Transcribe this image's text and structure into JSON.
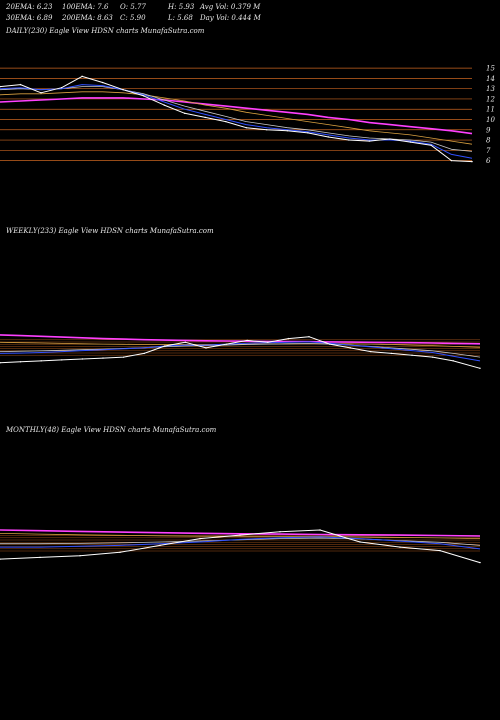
{
  "header": {
    "ema20": "20EMA: 6.23",
    "ema100": "100EMA: 7.6",
    "open": "O: 5.77",
    "high": "H: 5.93",
    "avgvol": "Avg Vol: 0.379 M",
    "ema30": "30EMA: 6.89",
    "ema200": "200EMA: 8.63",
    "close": "C: 5.90",
    "low": "L: 5.68",
    "dayvol": "Day Vol: 0.444 M"
  },
  "colors": {
    "background": "#000000",
    "price": "#ffffff",
    "ema_fast": "#3050ff",
    "ema_mid": "#c8c8c8",
    "ema_slow": "#d8a040",
    "ema_200": "#ff40ff",
    "guide_lines": "#c86420"
  },
  "chart_data": [
    {
      "type": "line",
      "title": "DAILY(230) Eagle  View  HDSN  charts MunafaSutra.com",
      "ylim": [
        4.5,
        15.5
      ],
      "y_ticks": [
        15,
        14,
        13,
        12,
        11,
        10,
        9,
        8,
        7,
        6
      ],
      "y_tick_labels": [
        "15",
        "14",
        "13",
        "12",
        "11",
        "10",
        "9",
        "8",
        "7",
        "6"
      ],
      "x": [
        0,
        10,
        20,
        30,
        40,
        50,
        60,
        70,
        80,
        90,
        100,
        110,
        120,
        130,
        140,
        150,
        160,
        170,
        180,
        190,
        200,
        210,
        220,
        230
      ],
      "series": [
        {
          "key": "price",
          "values": [
            13.2,
            13.4,
            12.6,
            13.1,
            14.2,
            13.6,
            12.9,
            12.3,
            11.4,
            10.6,
            10.2,
            9.8,
            9.2,
            9.0,
            8.9,
            8.7,
            8.3,
            8.0,
            7.9,
            8.1,
            7.8,
            7.5,
            6.0,
            5.9
          ]
        },
        {
          "key": "ema20",
          "values": [
            13.0,
            13.1,
            12.9,
            13.0,
            13.4,
            13.3,
            12.9,
            12.4,
            11.7,
            11.0,
            10.5,
            10.0,
            9.5,
            9.2,
            9.0,
            8.8,
            8.5,
            8.2,
            8.0,
            8.0,
            7.9,
            7.6,
            6.6,
            6.23
          ]
        },
        {
          "key": "ema30",
          "values": [
            12.9,
            13.0,
            12.9,
            13.0,
            13.2,
            13.2,
            12.9,
            12.5,
            11.9,
            11.3,
            10.8,
            10.3,
            9.8,
            9.5,
            9.2,
            9.0,
            8.7,
            8.4,
            8.2,
            8.1,
            8.0,
            7.8,
            7.1,
            6.89
          ]
        },
        {
          "key": "ema100",
          "values": [
            12.4,
            12.5,
            12.5,
            12.6,
            12.7,
            12.7,
            12.6,
            12.4,
            12.1,
            11.8,
            11.4,
            11.1,
            10.7,
            10.4,
            10.1,
            9.8,
            9.5,
            9.2,
            8.9,
            8.7,
            8.5,
            8.2,
            7.9,
            7.6
          ]
        },
        {
          "key": "ema200",
          "values": [
            11.7,
            11.8,
            11.9,
            12.0,
            12.1,
            12.1,
            12.1,
            12.0,
            11.9,
            11.7,
            11.5,
            11.3,
            11.1,
            10.9,
            10.7,
            10.5,
            10.2,
            10.0,
            9.7,
            9.5,
            9.3,
            9.1,
            8.9,
            8.63
          ]
        }
      ]
    },
    {
      "type": "line",
      "title": "WEEKLY(233) Eagle  View  HDSN  charts MunafaSutra.com",
      "ylim": [
        4,
        32
      ],
      "y_ticks": [],
      "x": [
        0,
        10,
        20,
        30,
        40,
        50,
        60,
        70,
        80,
        90,
        100,
        110,
        120,
        130,
        140,
        150,
        160,
        170,
        180,
        190,
        200,
        210,
        220,
        233
      ],
      "series": [
        {
          "key": "price",
          "values": [
            9,
            9.5,
            10,
            10.5,
            11,
            11.5,
            12,
            14,
            18,
            20,
            17,
            19,
            21,
            20,
            22,
            23,
            19,
            17,
            15,
            14,
            13,
            12,
            10,
            6
          ]
        },
        {
          "key": "ema20",
          "values": [
            14,
            14.2,
            14.5,
            15,
            15.5,
            16,
            16.5,
            17,
            18,
            18.5,
            18.5,
            19,
            19.5,
            19.8,
            20,
            20.2,
            19.5,
            18.5,
            17.5,
            16.5,
            15.5,
            14.5,
            12.5,
            10
          ]
        },
        {
          "key": "ema30",
          "values": [
            15,
            15.2,
            15.4,
            15.7,
            16,
            16.3,
            16.7,
            17.1,
            17.6,
            18,
            18.2,
            18.5,
            18.8,
            19,
            19.2,
            19.3,
            19,
            18.5,
            17.8,
            17,
            16.2,
            15.4,
            14,
            12
          ]
        },
        {
          "key": "ema100",
          "values": [
            20,
            19.8,
            19.6,
            19.4,
            19.2,
            19,
            18.9,
            18.8,
            18.8,
            18.8,
            18.8,
            18.9,
            19,
            19.1,
            19.2,
            19.3,
            19.3,
            19.2,
            19,
            18.8,
            18.5,
            18.2,
            17.8,
            17.3
          ]
        },
        {
          "key": "ema200",
          "values": [
            24,
            23.6,
            23.2,
            22.8,
            22.4,
            22,
            21.7,
            21.4,
            21.2,
            21,
            20.8,
            20.7,
            20.6,
            20.5,
            20.4,
            20.3,
            20.2,
            20.1,
            20,
            19.9,
            19.8,
            19.6,
            19.4,
            19.2
          ]
        }
      ]
    },
    {
      "type": "line",
      "title": "MONTHLY(48) Eagle  View  HDSN  charts MunafaSutra.com",
      "ylim": [
        4,
        32
      ],
      "y_ticks": [],
      "x": [
        0,
        4,
        8,
        12,
        16,
        20,
        24,
        28,
        32,
        36,
        40,
        44,
        48
      ],
      "series": [
        {
          "key": "price",
          "values": [
            8,
            9,
            10,
            12,
            16,
            20,
            22,
            24,
            25,
            18,
            15,
            13,
            6
          ]
        },
        {
          "key": "ema20",
          "values": [
            15,
            15,
            15.5,
            16,
            17,
            18,
            19.5,
            20.5,
            21,
            20,
            18.5,
            17,
            14
          ]
        },
        {
          "key": "ema30",
          "values": [
            17,
            17,
            17.2,
            17.5,
            18,
            18.6,
            19.3,
            20,
            20.3,
            19.8,
            18.8,
            17.8,
            16
          ]
        },
        {
          "key": "ema100",
          "values": [
            23,
            22.6,
            22.2,
            21.9,
            21.6,
            21.4,
            21.3,
            21.2,
            21.2,
            21,
            20.7,
            20.4,
            20
          ]
        },
        {
          "key": "ema200",
          "values": [
            25,
            24.6,
            24.2,
            23.8,
            23.4,
            23.1,
            22.8,
            22.6,
            22.4,
            22.2,
            22,
            21.8,
            21.5
          ]
        }
      ]
    }
  ]
}
